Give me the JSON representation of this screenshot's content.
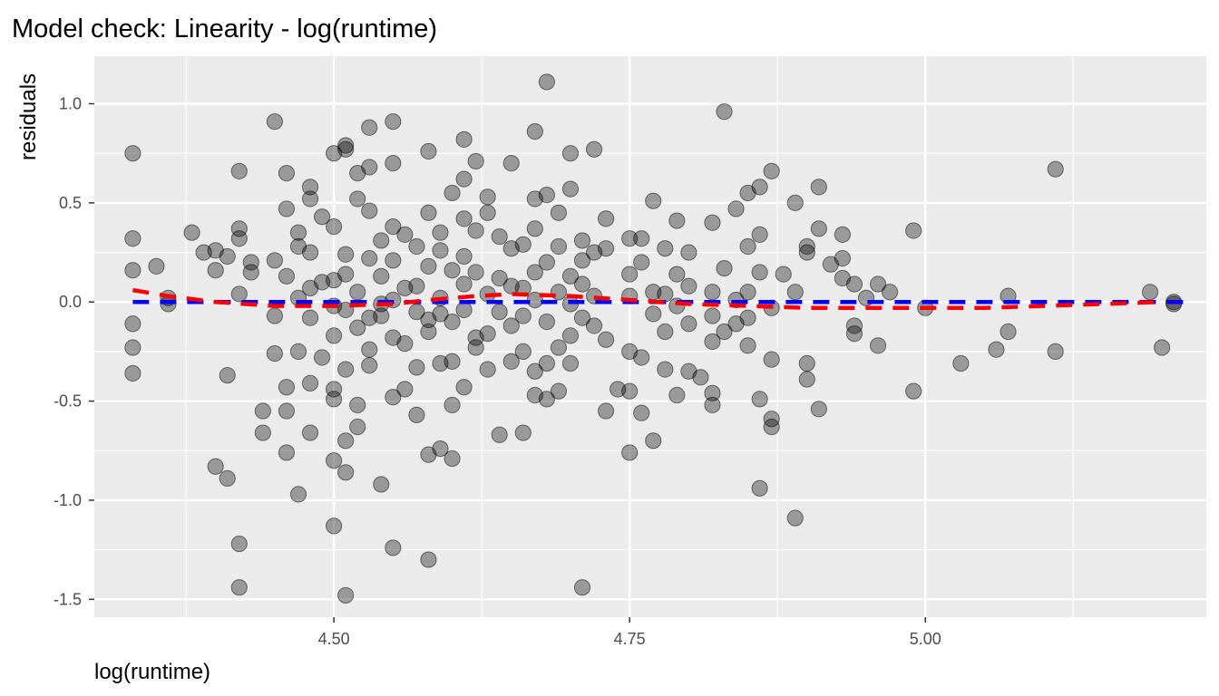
{
  "chart_data": {
    "type": "scatter",
    "title": "Model check: Linearity - log(runtime)",
    "xlabel": "log(runtime)",
    "ylabel": "residuals",
    "xlim": [
      4.2975,
      5.2375
    ],
    "ylim": [
      -1.59,
      1.24
    ],
    "x_ticks": [
      4.5,
      4.75,
      5.0
    ],
    "x_tick_labels": [
      "4.50",
      "4.75",
      "5.00"
    ],
    "x_minor_ticks": [
      4.375,
      4.625,
      4.875,
      5.125
    ],
    "y_ticks": [
      1.0,
      0.5,
      0.0,
      -0.5,
      -1.0,
      -1.5
    ],
    "y_tick_labels": [
      "1.0",
      "0.5",
      "0.0",
      "-0.5",
      "-1.0",
      "-1.5"
    ],
    "y_minor_ticks": [
      0.75,
      0.25,
      -0.25,
      -0.75,
      -1.25
    ],
    "grid": true,
    "background": "#ebebeb",
    "point_color": "#000000",
    "point_opacity": 0.35,
    "lines": [
      {
        "style": "dashed",
        "color": "#0000ff",
        "x": [
          4.33,
          5.22
        ],
        "y": [
          0.0,
          0.0
        ]
      },
      {
        "style": "dashed",
        "color": "#ff0000",
        "x": [
          4.33,
          4.36,
          4.4,
          4.45,
          4.5,
          4.55,
          4.58,
          4.62,
          4.65,
          4.7,
          4.75,
          4.8,
          4.85,
          4.9,
          4.95,
          5.0,
          5.05,
          5.1,
          5.15,
          5.2
        ],
        "y": [
          0.06,
          0.03,
          0.0,
          -0.02,
          -0.02,
          -0.01,
          0.01,
          0.03,
          0.04,
          0.03,
          0.01,
          -0.01,
          -0.02,
          -0.03,
          -0.03,
          -0.03,
          -0.03,
          -0.02,
          -0.01,
          0.0
        ]
      }
    ],
    "points": [
      [
        4.33,
        0.75
      ],
      [
        4.33,
        0.32
      ],
      [
        4.33,
        0.16
      ],
      [
        4.33,
        -0.11
      ],
      [
        4.33,
        -0.23
      ],
      [
        4.33,
        -0.36
      ],
      [
        4.35,
        0.18
      ],
      [
        4.36,
        0.02
      ],
      [
        4.36,
        -0.01
      ],
      [
        4.38,
        0.35
      ],
      [
        4.39,
        0.25
      ],
      [
        4.4,
        0.26
      ],
      [
        4.4,
        0.16
      ],
      [
        4.41,
        0.23
      ],
      [
        4.4,
        -0.83
      ],
      [
        4.41,
        -0.89
      ],
      [
        4.41,
        -0.37
      ],
      [
        4.42,
        0.66
      ],
      [
        4.42,
        0.37
      ],
      [
        4.42,
        0.32
      ],
      [
        4.42,
        0.04
      ],
      [
        4.42,
        -1.22
      ],
      [
        4.42,
        -1.44
      ],
      [
        4.43,
        0.2
      ],
      [
        4.43,
        0.15
      ],
      [
        4.44,
        -0.55
      ],
      [
        4.44,
        -0.66
      ],
      [
        4.45,
        0.91
      ],
      [
        4.45,
        0.21
      ],
      [
        4.45,
        -0.07
      ],
      [
        4.45,
        -0.26
      ],
      [
        4.46,
        0.65
      ],
      [
        4.46,
        0.47
      ],
      [
        4.46,
        0.13
      ],
      [
        4.46,
        -0.43
      ],
      [
        4.46,
        -0.55
      ],
      [
        4.46,
        -0.76
      ],
      [
        4.47,
        0.35
      ],
      [
        4.47,
        0.28
      ],
      [
        4.47,
        0.02
      ],
      [
        4.47,
        -0.25
      ],
      [
        4.47,
        -0.97
      ],
      [
        4.48,
        0.58
      ],
      [
        4.48,
        0.52
      ],
      [
        4.48,
        0.25
      ],
      [
        4.48,
        0.07
      ],
      [
        4.48,
        -0.08
      ],
      [
        4.48,
        -0.41
      ],
      [
        4.48,
        -0.66
      ],
      [
        4.49,
        0.43
      ],
      [
        4.49,
        0.1
      ],
      [
        4.49,
        -0.28
      ],
      [
        4.5,
        0.75
      ],
      [
        4.5,
        0.38
      ],
      [
        4.5,
        0.11
      ],
      [
        4.5,
        -0.02
      ],
      [
        4.5,
        -0.17
      ],
      [
        4.5,
        -0.44
      ],
      [
        4.5,
        -0.49
      ],
      [
        4.5,
        -0.8
      ],
      [
        4.5,
        -1.13
      ],
      [
        4.51,
        0.79
      ],
      [
        4.51,
        0.77
      ],
      [
        4.51,
        0.24
      ],
      [
        4.51,
        0.14
      ],
      [
        4.51,
        -0.04
      ],
      [
        4.51,
        -0.34
      ],
      [
        4.51,
        -0.7
      ],
      [
        4.51,
        -0.86
      ],
      [
        4.51,
        -1.48
      ],
      [
        4.52,
        0.65
      ],
      [
        4.52,
        0.52
      ],
      [
        4.52,
        0.05
      ],
      [
        4.52,
        -0.13
      ],
      [
        4.52,
        -0.52
      ],
      [
        4.52,
        -0.63
      ],
      [
        4.53,
        0.88
      ],
      [
        4.53,
        0.68
      ],
      [
        4.53,
        0.46
      ],
      [
        4.53,
        0.22
      ],
      [
        4.53,
        -0.08
      ],
      [
        4.53,
        -0.24
      ],
      [
        4.53,
        -0.32
      ],
      [
        4.54,
        0.31
      ],
      [
        4.54,
        0.13
      ],
      [
        4.54,
        -0.01
      ],
      [
        4.54,
        -0.07
      ],
      [
        4.54,
        -0.92
      ],
      [
        4.55,
        0.91
      ],
      [
        4.55,
        0.7
      ],
      [
        4.55,
        0.38
      ],
      [
        4.55,
        0.21
      ],
      [
        4.55,
        0.01
      ],
      [
        4.55,
        -0.18
      ],
      [
        4.55,
        -0.48
      ],
      [
        4.55,
        -1.24
      ],
      [
        4.56,
        0.34
      ],
      [
        4.56,
        0.07
      ],
      [
        4.56,
        -0.21
      ],
      [
        4.56,
        -0.44
      ],
      [
        4.57,
        0.28
      ],
      [
        4.57,
        0.08
      ],
      [
        4.57,
        -0.05
      ],
      [
        4.57,
        -0.33
      ],
      [
        4.57,
        -0.57
      ],
      [
        4.58,
        0.76
      ],
      [
        4.58,
        0.45
      ],
      [
        4.58,
        0.18
      ],
      [
        4.58,
        -0.09
      ],
      [
        4.58,
        -0.15
      ],
      [
        4.58,
        -0.77
      ],
      [
        4.58,
        -1.3
      ],
      [
        4.59,
        0.35
      ],
      [
        4.59,
        0.26
      ],
      [
        4.59,
        0.02
      ],
      [
        4.59,
        -0.06
      ],
      [
        4.59,
        -0.31
      ],
      [
        4.59,
        -0.74
      ],
      [
        4.6,
        0.55
      ],
      [
        4.6,
        0.16
      ],
      [
        4.6,
        -0.1
      ],
      [
        4.6,
        -0.3
      ],
      [
        4.6,
        -0.52
      ],
      [
        4.6,
        -0.79
      ],
      [
        4.61,
        0.82
      ],
      [
        4.61,
        0.62
      ],
      [
        4.61,
        0.42
      ],
      [
        4.61,
        0.23
      ],
      [
        4.61,
        0.09
      ],
      [
        4.61,
        -0.04
      ],
      [
        4.61,
        -0.43
      ],
      [
        4.62,
        0.71
      ],
      [
        4.62,
        0.36
      ],
      [
        4.62,
        0.15
      ],
      [
        4.62,
        -0.18
      ],
      [
        4.62,
        -0.23
      ],
      [
        4.63,
        0.53
      ],
      [
        4.63,
        0.45
      ],
      [
        4.63,
        0.04
      ],
      [
        4.63,
        -0.16
      ],
      [
        4.63,
        -0.34
      ],
      [
        4.64,
        0.33
      ],
      [
        4.64,
        0.12
      ],
      [
        4.64,
        -0.05
      ],
      [
        4.64,
        -0.67
      ],
      [
        4.65,
        0.7
      ],
      [
        4.65,
        0.27
      ],
      [
        4.65,
        0.08
      ],
      [
        4.65,
        -0.12
      ],
      [
        4.65,
        -0.3
      ],
      [
        4.66,
        0.29
      ],
      [
        4.66,
        0.07
      ],
      [
        4.66,
        -0.07
      ],
      [
        4.66,
        -0.25
      ],
      [
        4.66,
        -0.66
      ],
      [
        4.67,
        0.86
      ],
      [
        4.67,
        0.52
      ],
      [
        4.67,
        0.37
      ],
      [
        4.67,
        0.15
      ],
      [
        4.67,
        0.01
      ],
      [
        4.67,
        -0.35
      ],
      [
        4.67,
        -0.47
      ],
      [
        4.68,
        1.11
      ],
      [
        4.68,
        0.54
      ],
      [
        4.68,
        0.2
      ],
      [
        4.68,
        -0.1
      ],
      [
        4.68,
        -0.31
      ],
      [
        4.68,
        -0.49
      ],
      [
        4.69,
        0.45
      ],
      [
        4.69,
        0.28
      ],
      [
        4.69,
        0.05
      ],
      [
        4.69,
        -0.23
      ],
      [
        4.69,
        -0.45
      ],
      [
        4.7,
        0.75
      ],
      [
        4.7,
        0.57
      ],
      [
        4.7,
        0.13
      ],
      [
        4.7,
        -0.01
      ],
      [
        4.7,
        -0.17
      ],
      [
        4.7,
        -0.31
      ],
      [
        4.71,
        0.31
      ],
      [
        4.71,
        0.21
      ],
      [
        4.71,
        0.09
      ],
      [
        4.71,
        -0.08
      ],
      [
        4.71,
        -1.44
      ],
      [
        4.72,
        0.77
      ],
      [
        4.72,
        0.25
      ],
      [
        4.72,
        0.03
      ],
      [
        4.72,
        -0.12
      ],
      [
        4.73,
        0.42
      ],
      [
        4.73,
        0.27
      ],
      [
        4.73,
        -0.19
      ],
      [
        4.73,
        -0.55
      ],
      [
        4.74,
        -0.44
      ],
      [
        4.75,
        0.32
      ],
      [
        4.75,
        0.14
      ],
      [
        4.75,
        0.03
      ],
      [
        4.75,
        -0.25
      ],
      [
        4.75,
        -0.45
      ],
      [
        4.75,
        -0.76
      ],
      [
        4.76,
        0.32
      ],
      [
        4.76,
        0.2
      ],
      [
        4.76,
        -0.28
      ],
      [
        4.76,
        -0.56
      ],
      [
        4.77,
        0.51
      ],
      [
        4.77,
        0.05
      ],
      [
        4.77,
        -0.06
      ],
      [
        4.77,
        -0.7
      ],
      [
        4.78,
        0.27
      ],
      [
        4.78,
        0.04
      ],
      [
        4.78,
        -0.15
      ],
      [
        4.78,
        -0.34
      ],
      [
        4.79,
        0.41
      ],
      [
        4.79,
        0.14
      ],
      [
        4.79,
        -0.02
      ],
      [
        4.79,
        -0.47
      ],
      [
        4.8,
        0.25
      ],
      [
        4.8,
        0.08
      ],
      [
        4.8,
        -0.11
      ],
      [
        4.8,
        -0.35
      ],
      [
        4.81,
        -0.38
      ],
      [
        4.82,
        0.4
      ],
      [
        4.82,
        0.05
      ],
      [
        4.82,
        -0.07
      ],
      [
        4.82,
        -0.2
      ],
      [
        4.82,
        -0.46
      ],
      [
        4.82,
        -0.52
      ],
      [
        4.83,
        0.96
      ],
      [
        4.83,
        0.17
      ],
      [
        4.83,
        -0.15
      ],
      [
        4.84,
        0.47
      ],
      [
        4.84,
        0.01
      ],
      [
        4.84,
        -0.11
      ],
      [
        4.85,
        0.55
      ],
      [
        4.85,
        0.28
      ],
      [
        4.85,
        0.05
      ],
      [
        4.85,
        -0.08
      ],
      [
        4.85,
        -0.22
      ],
      [
        4.86,
        0.58
      ],
      [
        4.86,
        0.34
      ],
      [
        4.86,
        0.15
      ],
      [
        4.86,
        -0.49
      ],
      [
        4.86,
        -0.94
      ],
      [
        4.87,
        0.66
      ],
      [
        4.87,
        -0.03
      ],
      [
        4.87,
        -0.29
      ],
      [
        4.87,
        -0.59
      ],
      [
        4.87,
        -0.63
      ],
      [
        4.88,
        0.14
      ],
      [
        4.89,
        0.5
      ],
      [
        4.89,
        0.05
      ],
      [
        4.89,
        -1.09
      ],
      [
        4.9,
        0.25
      ],
      [
        4.9,
        0.28
      ],
      [
        4.9,
        -0.31
      ],
      [
        4.9,
        -0.39
      ],
      [
        4.91,
        0.58
      ],
      [
        4.91,
        0.37
      ],
      [
        4.91,
        -0.54
      ],
      [
        4.92,
        0.19
      ],
      [
        4.93,
        0.22
      ],
      [
        4.93,
        0.34
      ],
      [
        4.93,
        0.12
      ],
      [
        4.94,
        0.09
      ],
      [
        4.94,
        -0.12
      ],
      [
        4.94,
        -0.16
      ],
      [
        4.95,
        0.02
      ],
      [
        4.96,
        0.09
      ],
      [
        4.96,
        -0.22
      ],
      [
        4.97,
        0.05
      ],
      [
        4.99,
        0.36
      ],
      [
        4.99,
        -0.45
      ],
      [
        5.0,
        -0.03
      ],
      [
        5.03,
        -0.31
      ],
      [
        5.06,
        -0.24
      ],
      [
        5.07,
        0.03
      ],
      [
        5.07,
        -0.15
      ],
      [
        5.11,
        0.67
      ],
      [
        5.11,
        -0.25
      ],
      [
        5.19,
        0.05
      ],
      [
        5.2,
        -0.23
      ],
      [
        5.21,
        0.0
      ],
      [
        5.21,
        -0.01
      ]
    ]
  }
}
